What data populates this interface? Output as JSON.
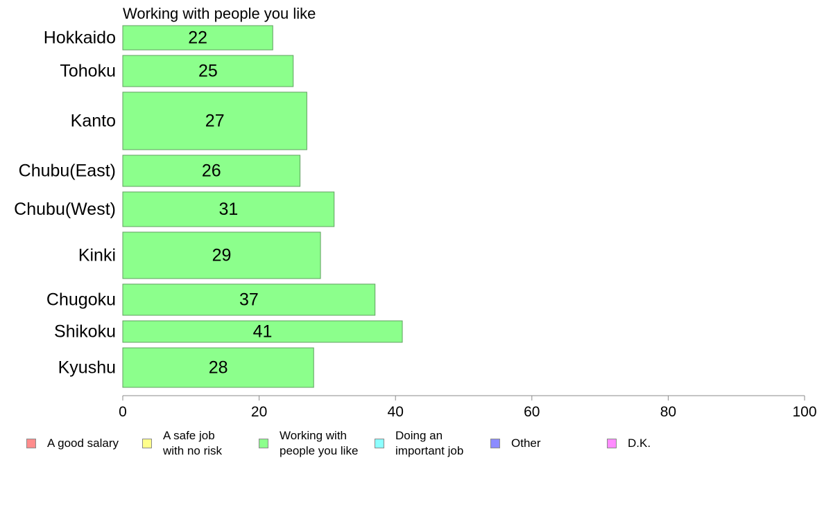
{
  "chart_data": {
    "type": "bar",
    "orientation": "horizontal",
    "title": "Working with people you like",
    "categories": [
      "Hokkaido",
      "Tohoku",
      "Kanto",
      "Chubu(East)",
      "Chubu(West)",
      "Kinki",
      "Chugoku",
      "Shikoku",
      "Kyushu"
    ],
    "values": [
      22,
      25,
      27,
      26,
      31,
      29,
      37,
      41,
      28
    ],
    "bar_value_labels": [
      "22",
      "25",
      "27",
      "26",
      "31",
      "29",
      "37",
      "41",
      "28"
    ],
    "xlim": [
      0,
      100
    ],
    "x_ticks": [
      0,
      20,
      40,
      60,
      80,
      100
    ],
    "bar_color": "#8cff8c",
    "bar_edge_color": "#5f9f5f",
    "grid": false,
    "legend_placement": "bottom",
    "legend": [
      {
        "label": "A good salary",
        "color": "#ff8c8c"
      },
      {
        "label": "A safe job\nwith no risk",
        "color": "#ffff8c"
      },
      {
        "label": "Working with\npeople you like",
        "color": "#8cff8c"
      },
      {
        "label": "Doing an\nimportant job",
        "color": "#8cffff"
      },
      {
        "label": "Other",
        "color": "#8c8cff"
      },
      {
        "label": "D.K.",
        "color": "#ff8cff"
      }
    ]
  }
}
